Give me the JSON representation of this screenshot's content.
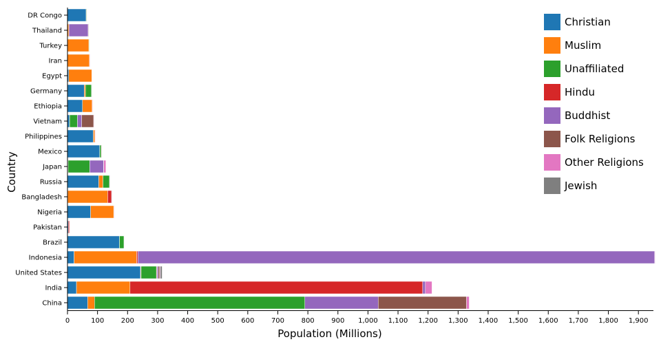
{
  "chart_data": {
    "type": "bar",
    "orientation": "horizontal",
    "stacked": true,
    "xlabel": "Population (Millions)",
    "ylabel": "Country",
    "xlim": [
      0,
      1950
    ],
    "x_ticks": [
      0,
      100,
      200,
      300,
      400,
      500,
      600,
      700,
      800,
      900,
      1000,
      1100,
      1200,
      1300,
      1400,
      1500,
      1600,
      1700,
      1800,
      1900
    ],
    "x_tick_labels": [
      "0",
      "100",
      "200",
      "300",
      "400",
      "500",
      "600",
      "700",
      "800",
      "900",
      "1,000",
      "1,100",
      "1,200",
      "1,300",
      "1,400",
      "1,500",
      "1,600",
      "1,700",
      "1,800",
      "1,900"
    ],
    "grid": false,
    "legend_position": "top-right",
    "categories": [
      "DR Congo",
      "Thailand",
      "Turkey",
      "Iran",
      "Egypt",
      "Germany",
      "Ethiopia",
      "Vietnam",
      "Philippines",
      "Mexico",
      "Japan",
      "Russia",
      "Bangladesh",
      "Nigeria",
      "Pakistan",
      "Brazil",
      "Indonesia",
      "United States",
      "India",
      "China"
    ],
    "series": [
      {
        "name": "Christian",
        "color": "#1f77b4",
        "values": [
          62,
          0.5,
          0.2,
          0.3,
          4,
          56,
          50,
          7,
          86,
          107,
          2,
          104,
          0.8,
          77,
          3,
          173,
          22,
          243,
          30,
          67
        ]
      },
      {
        "name": "Muslim",
        "color": "#ff7f0e",
        "values": [
          1,
          4,
          71,
          73,
          77,
          4,
          32,
          0.2,
          5,
          0.1,
          0.2,
          14,
          133,
          77,
          0,
          0.1,
          208,
          2,
          178,
          23
        ]
      },
      {
        "name": "Unaffiliated",
        "color": "#2ca02c",
        "values": [
          1,
          0.2,
          0.2,
          0.1,
          0,
          20,
          0.2,
          26,
          0.1,
          5,
          72,
          22,
          0,
          0.4,
          0,
          15,
          0.2,
          51,
          0.1,
          700
        ]
      },
      {
        "name": "Hindu",
        "color": "#d62728",
        "values": [
          0,
          0.1,
          0,
          0,
          0,
          0.1,
          0,
          0,
          0,
          0,
          0,
          0.1,
          13,
          0,
          3.5,
          0,
          4,
          2,
          974,
          0
        ]
      },
      {
        "name": "Buddhist",
        "color": "#9467bd",
        "values": [
          0,
          64,
          0,
          0,
          0,
          0.2,
          0,
          14,
          0.1,
          0,
          46,
          0.2,
          0.8,
          0,
          0,
          0.2,
          1720,
          4,
          9,
          244
        ]
      },
      {
        "name": "Folk Religions",
        "color": "#8c564b",
        "values": [
          0,
          0.5,
          0,
          0,
          0,
          0,
          0,
          40,
          0.2,
          0.4,
          0.5,
          0.2,
          0,
          1,
          0,
          0,
          0,
          5,
          0,
          294
        ]
      },
      {
        "name": "Other Religions",
        "color": "#e377c2",
        "values": [
          0,
          0,
          0,
          0.1,
          0,
          0.2,
          0.1,
          0.2,
          0.1,
          0,
          7,
          0.5,
          0,
          0.2,
          0,
          0.5,
          0.5,
          2,
          22,
          9
        ]
      },
      {
        "name": "Jewish",
        "color": "#7f7f7f",
        "values": [
          0,
          0,
          0,
          0,
          0,
          0.1,
          0,
          0,
          0,
          0,
          0,
          0,
          0,
          0,
          0,
          0,
          0,
          6,
          0,
          0
        ]
      }
    ]
  }
}
